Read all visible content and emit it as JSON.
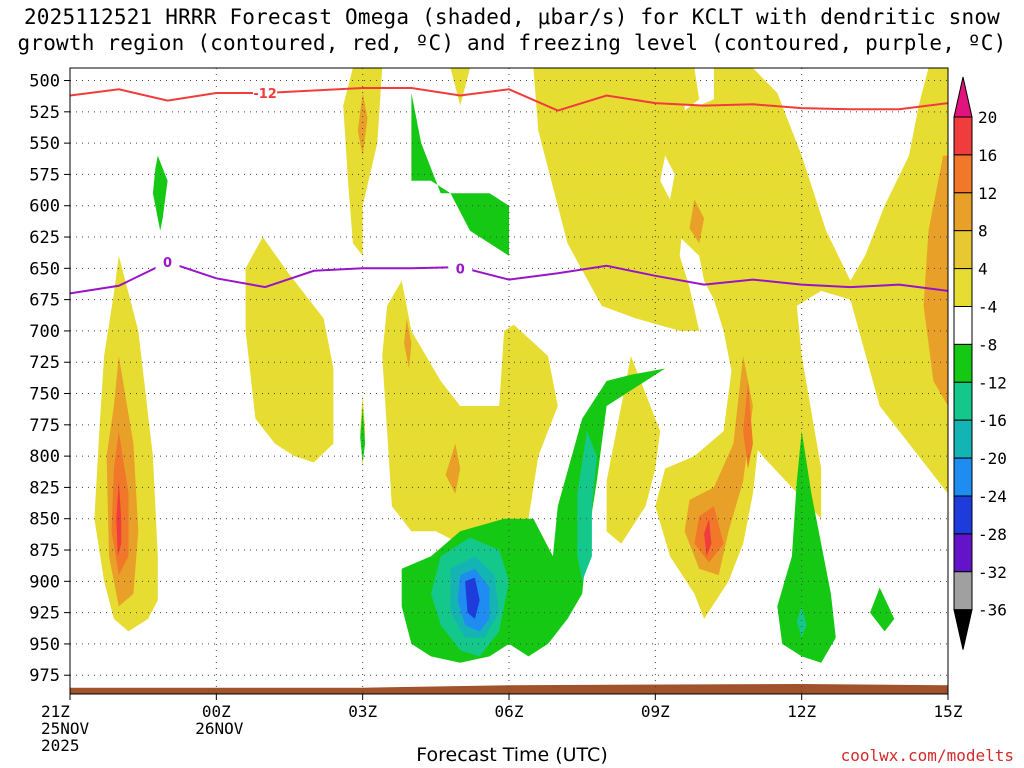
{
  "chart_data": {
    "type": "time-height-contour",
    "title_line1": "2025112521 HRRR Forecast Omega (shaded, μbar/s) for KCLT with dendritic snow",
    "title_line2": "growth region (contoured, red, ºC) and freezing level (contoured, purple, ºC)",
    "xlabel": "Forecast Time (UTC)",
    "credit": "coolwx.com/modelts",
    "x_range_hours": [
      0,
      18
    ],
    "y_range_hpa": [
      490,
      990
    ],
    "y_ticks": [
      500,
      525,
      550,
      575,
      600,
      625,
      650,
      675,
      700,
      725,
      750,
      775,
      800,
      825,
      850,
      875,
      900,
      925,
      950,
      975
    ],
    "x_ticks": [
      {
        "hour": 0,
        "lines": [
          "21Z",
          "25NOV",
          "2025"
        ]
      },
      {
        "hour": 3,
        "lines": [
          "00Z",
          "26NOV"
        ]
      },
      {
        "hour": 6,
        "lines": [
          "03Z"
        ]
      },
      {
        "hour": 9,
        "lines": [
          "06Z"
        ]
      },
      {
        "hour": 12,
        "lines": [
          "09Z"
        ]
      },
      {
        "hour": 15,
        "lines": [
          "12Z"
        ]
      },
      {
        "hour": 18,
        "lines": [
          "15Z"
        ]
      }
    ],
    "colorbar": {
      "labels": [
        "20",
        "16",
        "12",
        "8",
        "4",
        "-4",
        "-8",
        "-12",
        "-16",
        "-20",
        "-24",
        "-28",
        "-32",
        "-36"
      ],
      "colors": [
        "#f03c3c",
        "#f07828",
        "#e8a028",
        "#e8c832",
        "#e6dc32",
        "#ffffff",
        "#14c814",
        "#14c88c",
        "#14b4b4",
        "#1e8cf0",
        "#1e3cdc",
        "#6414c8",
        "#a014c8",
        "#a0a0a0"
      ],
      "top_arrow": "#e0147c",
      "bottom_arrow": "#000000"
    },
    "contours": {
      "dendritic_line_label": "-12",
      "dendritic_color": "#f03c3c",
      "dendritic_points": [
        [
          0,
          512
        ],
        [
          1,
          507
        ],
        [
          2,
          516
        ],
        [
          3,
          510
        ],
        [
          4,
          510
        ],
        [
          5,
          508
        ],
        [
          6,
          506
        ],
        [
          7,
          506
        ],
        [
          8,
          512
        ],
        [
          9,
          507
        ],
        [
          10,
          524
        ],
        [
          11,
          512
        ],
        [
          12,
          518
        ],
        [
          13,
          520
        ],
        [
          14,
          519
        ],
        [
          15,
          522
        ],
        [
          16,
          523
        ],
        [
          17,
          523
        ],
        [
          18,
          518
        ]
      ],
      "freezing_line_label": "0",
      "freezing_color": "#9a14c8",
      "freezing_points": [
        [
          0,
          670
        ],
        [
          1,
          664
        ],
        [
          2,
          645
        ],
        [
          3,
          658
        ],
        [
          4,
          665
        ],
        [
          5,
          652
        ],
        [
          6,
          650
        ],
        [
          7,
          650
        ],
        [
          8,
          649
        ],
        [
          9,
          659
        ],
        [
          10,
          654
        ],
        [
          11,
          648
        ],
        [
          12,
          656
        ],
        [
          13,
          663
        ],
        [
          14,
          659
        ],
        [
          15,
          663
        ],
        [
          16,
          665
        ],
        [
          17,
          663
        ],
        [
          18,
          668
        ]
      ]
    },
    "colors": {
      "yellow": "#e6dc32",
      "gold": "#e8a028",
      "orange": "#f07828",
      "red": "#f03c3c",
      "green": "#14c814",
      "teal": "#14c88c",
      "cyan": "#14b4b4",
      "blue": "#1e8cf0",
      "darkblue": "#1e3cdc",
      "ground": "#a0522d"
    }
  }
}
